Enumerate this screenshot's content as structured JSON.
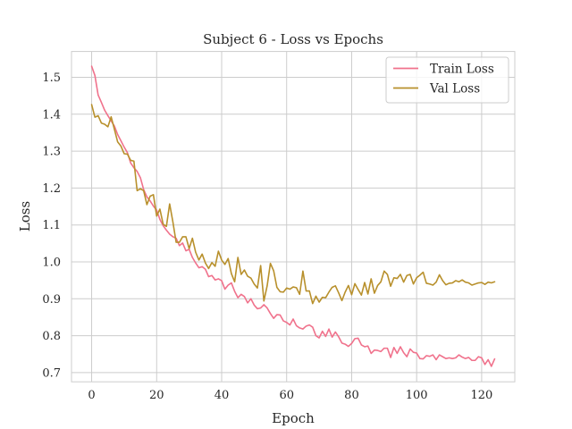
{
  "chart_data": {
    "type": "line",
    "title": "Subject 6 - Loss vs Epochs",
    "xlabel": "Epoch",
    "ylabel": "Loss",
    "xlim": [
      -6.2,
      130.2
    ],
    "ylim": [
      0.675,
      1.57
    ],
    "xticks": [
      0,
      20,
      40,
      60,
      80,
      100,
      120
    ],
    "yticks": [
      0.7,
      0.8,
      0.9,
      1.0,
      1.1,
      1.2,
      1.3,
      1.4,
      1.5
    ],
    "xtick_labels": [
      "0",
      "20",
      "40",
      "60",
      "80",
      "100",
      "120"
    ],
    "ytick_labels": [
      "0.7",
      "0.8",
      "0.9",
      "1.0",
      "1.1",
      "1.2",
      "1.3",
      "1.4",
      "1.5"
    ],
    "grid": true,
    "legend_position": "top-right",
    "series": [
      {
        "name": "Train Loss",
        "color": "#f0728c",
        "values": [
          1.53,
          1.505,
          1.452,
          1.432,
          1.411,
          1.396,
          1.382,
          1.368,
          1.345,
          1.328,
          1.311,
          1.296,
          1.268,
          1.255,
          1.245,
          1.228,
          1.196,
          1.176,
          1.165,
          1.151,
          1.14,
          1.115,
          1.098,
          1.086,
          1.075,
          1.068,
          1.064,
          1.044,
          1.051,
          1.03,
          1.034,
          1.012,
          0.997,
          0.984,
          0.987,
          0.98,
          0.96,
          0.963,
          0.951,
          0.954,
          0.949,
          0.926,
          0.937,
          0.943,
          0.92,
          0.903,
          0.912,
          0.906,
          0.889,
          0.9,
          0.883,
          0.873,
          0.875,
          0.884,
          0.875,
          0.86,
          0.847,
          0.857,
          0.856,
          0.84,
          0.836,
          0.829,
          0.845,
          0.827,
          0.821,
          0.818,
          0.826,
          0.829,
          0.823,
          0.8,
          0.794,
          0.812,
          0.798,
          0.818,
          0.796,
          0.81,
          0.797,
          0.78,
          0.777,
          0.771,
          0.779,
          0.792,
          0.793,
          0.775,
          0.77,
          0.772,
          0.752,
          0.761,
          0.76,
          0.757,
          0.766,
          0.766,
          0.741,
          0.768,
          0.752,
          0.77,
          0.754,
          0.743,
          0.764,
          0.755,
          0.753,
          0.738,
          0.737,
          0.746,
          0.744,
          0.748,
          0.735,
          0.748,
          0.743,
          0.738,
          0.74,
          0.738,
          0.74,
          0.748,
          0.742,
          0.738,
          0.741,
          0.733,
          0.733,
          0.743,
          0.74,
          0.722,
          0.735,
          0.717,
          0.737
        ]
      },
      {
        "name": "Val Loss",
        "color": "#b8902c",
        "values": [
          1.426,
          1.392,
          1.396,
          1.376,
          1.373,
          1.366,
          1.393,
          1.359,
          1.325,
          1.314,
          1.293,
          1.292,
          1.275,
          1.273,
          1.193,
          1.198,
          1.193,
          1.155,
          1.178,
          1.182,
          1.124,
          1.143,
          1.102,
          1.096,
          1.157,
          1.108,
          1.053,
          1.053,
          1.068,
          1.068,
          1.036,
          1.064,
          1.026,
          1.005,
          1.021,
          0.997,
          0.982,
          0.998,
          0.988,
          1.029,
          1.005,
          0.993,
          1.009,
          0.968,
          0.946,
          1.012,
          0.966,
          0.978,
          0.961,
          0.956,
          0.94,
          0.929,
          0.99,
          0.894,
          0.935,
          0.996,
          0.976,
          0.931,
          0.919,
          0.918,
          0.929,
          0.926,
          0.932,
          0.93,
          0.912,
          0.975,
          0.921,
          0.921,
          0.887,
          0.907,
          0.891,
          0.904,
          0.903,
          0.918,
          0.931,
          0.935,
          0.916,
          0.895,
          0.918,
          0.936,
          0.911,
          0.941,
          0.925,
          0.91,
          0.944,
          0.913,
          0.954,
          0.915,
          0.936,
          0.946,
          0.975,
          0.966,
          0.934,
          0.957,
          0.955,
          0.966,
          0.945,
          0.963,
          0.966,
          0.94,
          0.957,
          0.964,
          0.972,
          0.942,
          0.94,
          0.937,
          0.945,
          0.965,
          0.949,
          0.938,
          0.942,
          0.943,
          0.949,
          0.946,
          0.951,
          0.945,
          0.943,
          0.937,
          0.94,
          0.943,
          0.944,
          0.939,
          0.945,
          0.943,
          0.946
        ]
      }
    ]
  }
}
